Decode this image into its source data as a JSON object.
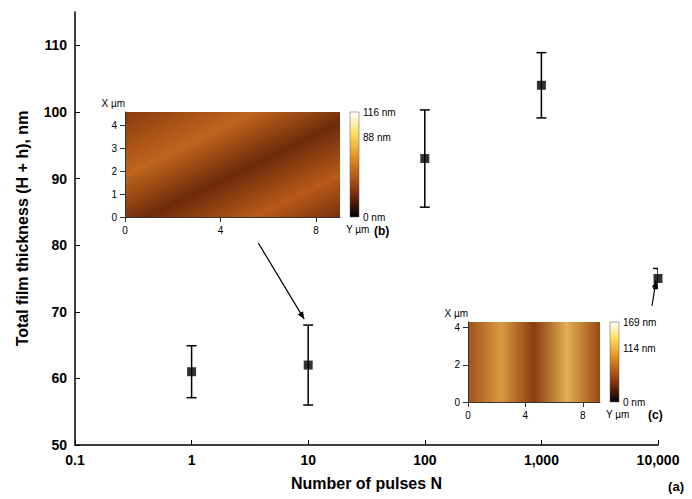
{
  "chart_data": {
    "type": "scatter",
    "x_label": "Number of pulses N",
    "y_label": "Total film thickness (H + h), nm",
    "panel_label": "(a)",
    "log": "x",
    "grid": false,
    "marker": "square",
    "color": "#000000",
    "x": [
      1,
      10,
      100,
      1000,
      10000
    ],
    "values": [
      61,
      62,
      93,
      104,
      75
    ],
    "errors": [
      3.9,
      6,
      7.3,
      4.9,
      1.5
    ],
    "xlim": [
      0.1,
      10000
    ],
    "xticks": [
      0.1,
      1,
      10,
      100,
      {
        "value": 1000,
        "label": "1,000"
      },
      {
        "value": 10000,
        "label": "10,000"
      }
    ],
    "ylim": [
      50,
      115
    ],
    "yticks": [
      50,
      60,
      70,
      80,
      90,
      100,
      110
    ],
    "insets": [
      {
        "label": "(b)",
        "points_to": 10,
        "x_label": "Y µm",
        "y_label": "X µm",
        "xlim": [
          0,
          9
        ],
        "xticks": [
          0,
          4,
          8
        ],
        "ylim": [
          0,
          4.6
        ],
        "yticks": [
          0,
          1,
          2,
          3,
          4
        ],
        "colorbar": {
          "range": [
            0,
            116
          ],
          "ticks": [
            {
              "value": 0,
              "label": "0 nm"
            },
            {
              "value": 88,
              "label": "88 nm"
            },
            {
              "value": 116,
              "label": "116 nm"
            }
          ]
        }
      },
      {
        "label": "(c)",
        "points_to": 10000,
        "x_label": "Y µm",
        "y_label": "X µm",
        "xlim": [
          0,
          9.2
        ],
        "xticks": [
          0,
          4,
          8
        ],
        "ylim": [
          0,
          4.3
        ],
        "yticks": [
          0,
          2,
          4
        ],
        "colorbar": {
          "range": [
            0,
            169
          ],
          "ticks": [
            {
              "value": 0,
              "label": "0 nm"
            },
            {
              "value": 114,
              "label": "114 nm"
            },
            {
              "value": 169,
              "label": "169 nm"
            }
          ]
        }
      }
    ]
  }
}
